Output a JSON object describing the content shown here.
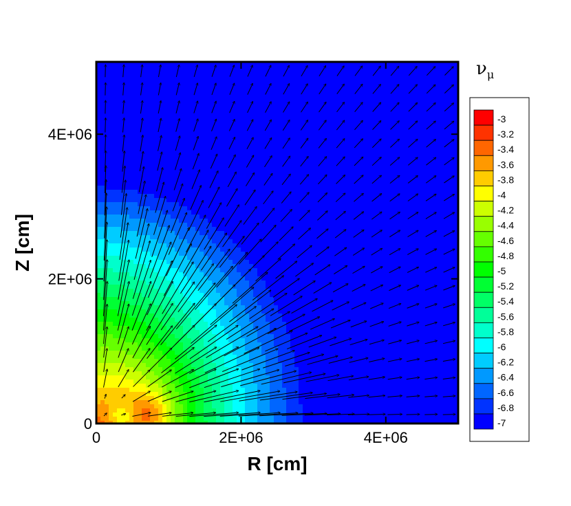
{
  "chart_data": {
    "type": "heatmap",
    "subtype": "contour-with-vector-field",
    "xlabel": "R [cm]",
    "ylabel": "Z [cm]",
    "xlim": [
      0,
      5000000
    ],
    "ylim": [
      0,
      5000000
    ],
    "x_ticks": [
      {
        "value": 0,
        "label": "0"
      },
      {
        "value": 2000000,
        "label": "2E+06"
      },
      {
        "value": 4000000,
        "label": "4E+06"
      }
    ],
    "y_ticks": [
      {
        "value": 0,
        "label": "0"
      },
      {
        "value": 2000000,
        "label": "2E+06"
      },
      {
        "value": 4000000,
        "label": "4E+06"
      }
    ],
    "legend": {
      "title": "ν",
      "title_subscript": "μ",
      "placement": "right",
      "levels": [
        {
          "label": "-3",
          "value": -3.0,
          "color": "#ff0000"
        },
        {
          "label": "-3.2",
          "value": -3.2,
          "color": "#ff3300"
        },
        {
          "label": "-3.4",
          "value": -3.4,
          "color": "#ff6600"
        },
        {
          "label": "-3.6",
          "value": -3.6,
          "color": "#ff9900"
        },
        {
          "label": "-3.8",
          "value": -3.8,
          "color": "#ffcc00"
        },
        {
          "label": "-4",
          "value": -4.0,
          "color": "#ffff00"
        },
        {
          "label": "-4.2",
          "value": -4.2,
          "color": "#ccff00"
        },
        {
          "label": "-4.4",
          "value": -4.4,
          "color": "#99ff00"
        },
        {
          "label": "-4.6",
          "value": -4.6,
          "color": "#66ff00"
        },
        {
          "label": "-4.8",
          "value": -4.8,
          "color": "#33ff00"
        },
        {
          "label": "-5",
          "value": -5.0,
          "color": "#00ff00"
        },
        {
          "label": "-5.2",
          "value": -5.2,
          "color": "#00ff33"
        },
        {
          "label": "-5.4",
          "value": -5.4,
          "color": "#00ff66"
        },
        {
          "label": "-5.6",
          "value": -5.6,
          "color": "#00ff99"
        },
        {
          "label": "-5.8",
          "value": -5.8,
          "color": "#00ffcc"
        },
        {
          "label": "-6",
          "value": -6.0,
          "color": "#00ffff"
        },
        {
          "label": "-6.2",
          "value": -6.2,
          "color": "#00ccff"
        },
        {
          "label": "-6.4",
          "value": -6.4,
          "color": "#0099ff"
        },
        {
          "label": "-6.6",
          "value": -6.6,
          "color": "#0066ff"
        },
        {
          "label": "-6.8",
          "value": -6.8,
          "color": "#0033ff"
        },
        {
          "label": "-7",
          "value": -7.0,
          "color": "#0000ff"
        }
      ]
    },
    "field": {
      "min_level": -7.0,
      "max_level": -3.0,
      "peak_location": [
        750000,
        150000
      ],
      "background_color": "#1a66ff"
    }
  }
}
